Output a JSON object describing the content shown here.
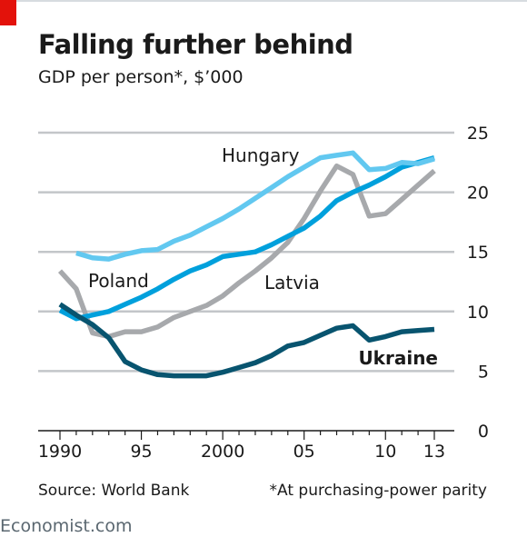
{
  "title": "Falling further behind",
  "subtitle": "GDP per person*, $’000",
  "source": "Source: World Bank",
  "footnote": "*At purchasing-power parity",
  "brand": "Economist.com",
  "chart_data": {
    "type": "line",
    "title": "Falling further behind",
    "subtitle": "GDP per person*, $’000",
    "xlim": [
      1989.5,
      2013.5
    ],
    "ylim": [
      0,
      25
    ],
    "yticks": [
      0,
      5,
      10,
      15,
      20,
      25
    ],
    "xticks": [
      {
        "value": 1990,
        "label": "1990"
      },
      {
        "value": 1995,
        "label": "95"
      },
      {
        "value": 2000,
        "label": "2000"
      },
      {
        "value": 2005,
        "label": "05"
      },
      {
        "value": 2010,
        "label": "10"
      },
      {
        "value": 2013,
        "label": "13"
      }
    ],
    "grid": true,
    "y_axis_side": "right",
    "series": [
      {
        "name": "Latvia",
        "color": "#a7a9ac",
        "x": [
          1990,
          1991,
          1992,
          1993,
          1994,
          1995,
          1996,
          1997,
          1998,
          1999,
          2000,
          2001,
          2002,
          2003,
          2004,
          2005,
          2006,
          2007,
          2008,
          2009,
          2010,
          2011,
          2012,
          2013
        ],
        "values": [
          13.4,
          11.9,
          8.2,
          7.9,
          8.3,
          8.3,
          8.7,
          9.5,
          10.0,
          10.5,
          11.3,
          12.4,
          13.4,
          14.5,
          15.8,
          17.8,
          20.1,
          22.2,
          21.5,
          18.0,
          18.2,
          19.4,
          20.6,
          21.8
        ]
      },
      {
        "name": "Poland",
        "color": "#00a0dc",
        "x": [
          1990,
          1991,
          1992,
          1993,
          1994,
          1995,
          1996,
          1997,
          1998,
          1999,
          2000,
          2001,
          2002,
          2003,
          2004,
          2005,
          2006,
          2007,
          2008,
          2009,
          2010,
          2011,
          2012,
          2013
        ],
        "values": [
          10.1,
          9.4,
          9.7,
          10.0,
          10.6,
          11.2,
          11.9,
          12.7,
          13.4,
          13.9,
          14.6,
          14.8,
          15.0,
          15.6,
          16.3,
          17.0,
          18.0,
          19.3,
          20.0,
          20.6,
          21.3,
          22.1,
          22.5,
          22.9
        ]
      },
      {
        "name": "Hungary",
        "color": "#62c8f0",
        "x": [
          1991,
          1992,
          1993,
          1994,
          1995,
          1996,
          1997,
          1998,
          1999,
          2000,
          2001,
          2002,
          2003,
          2004,
          2005,
          2006,
          2007,
          2008,
          2009,
          2010,
          2011,
          2012,
          2013
        ],
        "values": [
          14.9,
          14.5,
          14.4,
          14.8,
          15.1,
          15.2,
          15.9,
          16.4,
          17.1,
          17.8,
          18.6,
          19.5,
          20.4,
          21.3,
          22.1,
          22.9,
          23.1,
          23.3,
          21.9,
          22.0,
          22.5,
          22.4,
          22.8
        ]
      },
      {
        "name": "Ukraine",
        "color": "#08546f",
        "x": [
          1990,
          1991,
          1992,
          1993,
          1994,
          1995,
          1996,
          1997,
          1998,
          1999,
          2000,
          2001,
          2002,
          2003,
          2004,
          2005,
          2006,
          2007,
          2008,
          2009,
          2010,
          2011,
          2012,
          2013
        ],
        "values": [
          10.6,
          9.7,
          8.9,
          7.8,
          5.8,
          5.1,
          4.7,
          4.6,
          4.6,
          4.6,
          4.9,
          5.3,
          5.7,
          6.3,
          7.1,
          7.4,
          8.0,
          8.6,
          8.8,
          7.6,
          7.9,
          8.3,
          8.4,
          8.5
        ]
      }
    ]
  }
}
